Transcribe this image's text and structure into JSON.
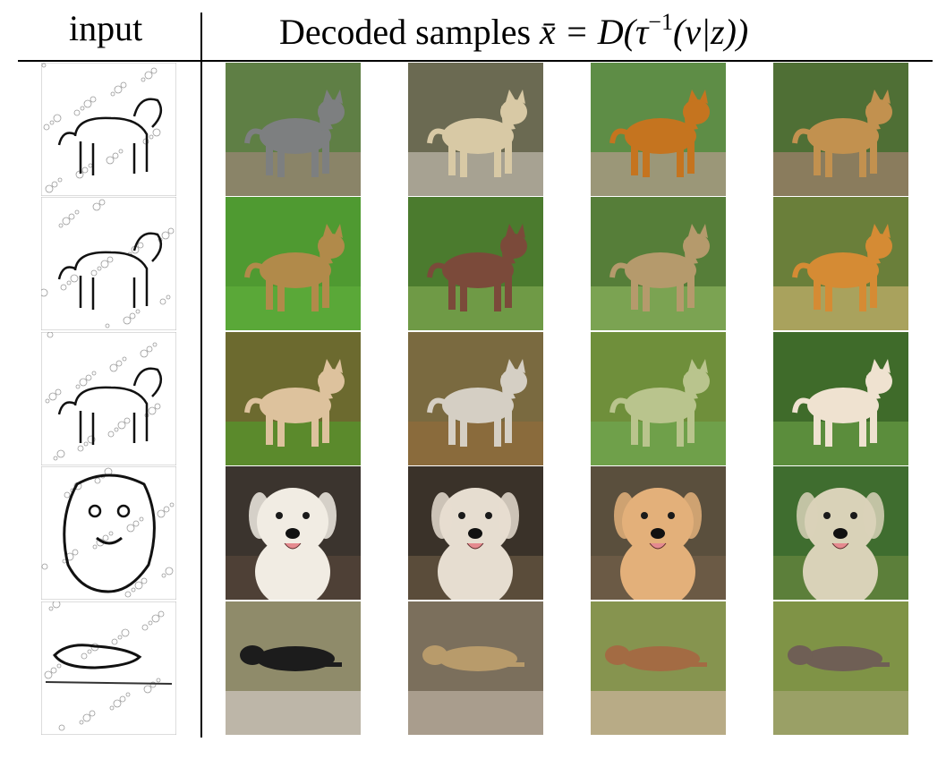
{
  "header": {
    "input_label": "input",
    "decoded_label_text": "Decoded samples ",
    "decoded_formula_a": "x̄ = D(τ",
    "decoded_formula_sup": "−1",
    "decoded_formula_b": "(v|z))"
  },
  "rows": [
    {
      "input_icon": "dog-edge-sketch-icon",
      "samples": [
        {
          "icon": "dog-sample-icon",
          "fur": "#7d7f80",
          "bg": "#5f7f45",
          "ground": "#8a8468"
        },
        {
          "icon": "dog-sample-icon",
          "fur": "#d8c9a5",
          "bg": "#6b6a52",
          "ground": "#a7a292"
        },
        {
          "icon": "dog-sample-icon",
          "fur": "#c5741f",
          "bg": "#5e8d46",
          "ground": "#9b9778"
        },
        {
          "icon": "dog-sample-icon",
          "fur": "#c2914f",
          "bg": "#4f6f35",
          "ground": "#8a7c5d"
        }
      ]
    },
    {
      "input_icon": "dog-edge-sketch-icon",
      "samples": [
        {
          "icon": "dog-sample-icon",
          "fur": "#b18a4a",
          "bg": "#4f9a31",
          "ground": "#5aa838"
        },
        {
          "icon": "dog-sample-icon",
          "fur": "#7b4a3a",
          "bg": "#4b7b2e",
          "ground": "#6f9a46"
        },
        {
          "icon": "dog-sample-icon",
          "fur": "#b59a6c",
          "bg": "#567e39",
          "ground": "#7ba352"
        },
        {
          "icon": "dog-sample-icon",
          "fur": "#d58b34",
          "bg": "#6a7f3a",
          "ground": "#a9a25d"
        }
      ]
    },
    {
      "input_icon": "dog-edge-sketch-icon",
      "samples": [
        {
          "icon": "dog-sample-icon",
          "fur": "#ddc29d",
          "bg": "#6c6a2f",
          "ground": "#5b8a2c"
        },
        {
          "icon": "dog-sample-icon",
          "fur": "#d5cfc4",
          "bg": "#7a6a40",
          "ground": "#8a6b3c"
        },
        {
          "icon": "dog-sample-icon",
          "fur": "#b9c48d",
          "bg": "#6f8f3b",
          "ground": "#6fa04a"
        },
        {
          "icon": "dog-sample-icon",
          "fur": "#efe2d0",
          "bg": "#3f6b2a",
          "ground": "#5b8d3c"
        }
      ]
    },
    {
      "input_icon": "dog-edge-sketch-icon",
      "samples": [
        {
          "icon": "dog-face-sample-icon",
          "fur": "#f1ece3",
          "bg": "#3b342e",
          "ground": "#4e4036"
        },
        {
          "icon": "dog-face-sample-icon",
          "fur": "#e6ddd0",
          "bg": "#3a3229",
          "ground": "#5a4c3a"
        },
        {
          "icon": "dog-face-sample-icon",
          "fur": "#e3b07a",
          "bg": "#5a4f3d",
          "ground": "#6b5a45"
        },
        {
          "icon": "dog-face-sample-icon",
          "fur": "#d9d2b8",
          "bg": "#3f6d2f",
          "ground": "#5c7f3a"
        }
      ]
    },
    {
      "input_icon": "dog-edge-sketch-icon",
      "samples": [
        {
          "icon": "lying-dog-sample-icon",
          "fur": "#1c1c1c",
          "bg": "#8f8b6a",
          "ground": "#bdb6a8"
        },
        {
          "icon": "lying-dog-sample-icon",
          "fur": "#b89b6b",
          "bg": "#7b6f5c",
          "ground": "#a99d8d"
        },
        {
          "icon": "lying-dog-sample-icon",
          "fur": "#a36b43",
          "bg": "#86944f",
          "ground": "#b8ab86"
        },
        {
          "icon": "lying-dog-sample-icon",
          "fur": "#6f5f55",
          "bg": "#7f9346",
          "ground": "#9aa066"
        }
      ]
    }
  ]
}
